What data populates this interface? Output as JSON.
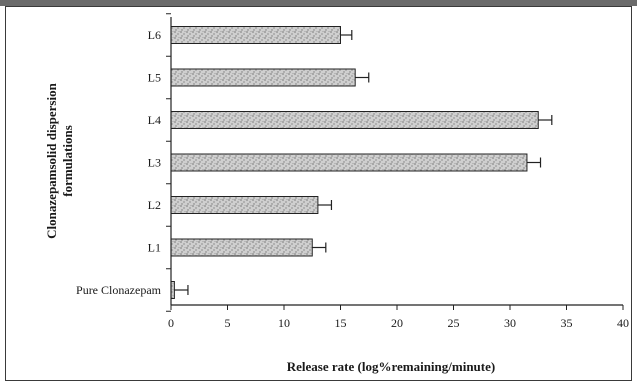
{
  "chart_data": {
    "type": "bar",
    "orientation": "horizontal",
    "categories": [
      "Pure Clonazepam",
      "L1",
      "L2",
      "L3",
      "L4",
      "L5",
      "L6"
    ],
    "values": [
      0.3,
      12.5,
      13.0,
      31.5,
      32.5,
      16.3,
      15.0
    ],
    "errors": [
      1.2,
      1.2,
      1.2,
      1.2,
      1.2,
      1.2,
      1.0
    ],
    "xlabel": "Release rate (log%remaining/minute)",
    "ylabel_lines": [
      "Clonazepamsolid dispersion",
      "formulations"
    ],
    "xlim": [
      0,
      40
    ],
    "xticks": [
      0,
      5,
      10,
      15,
      20,
      25,
      30,
      35,
      40
    ],
    "grid": false,
    "colors": {
      "bar_fill": "#c9c9c9",
      "bar_hatch": "#8a8a8a",
      "bar_edge": "#222222",
      "axis": "#222222",
      "frame_band": "#6b6b6b"
    }
  }
}
